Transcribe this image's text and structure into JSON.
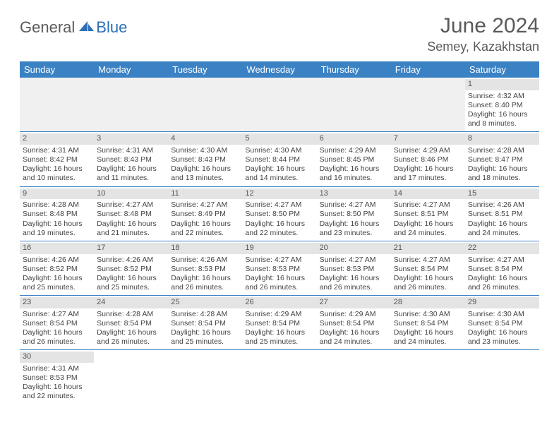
{
  "logo": {
    "text1": "General",
    "text2": "Blue"
  },
  "title": "June 2024",
  "location": "Semey, Kazakhstan",
  "daysOfWeek": [
    "Sunday",
    "Monday",
    "Tuesday",
    "Wednesday",
    "Thursday",
    "Friday",
    "Saturday"
  ],
  "colors": {
    "headerBg": "#3b82c4",
    "headerText": "#ffffff",
    "dayNumBg": "#e4e4e4",
    "borderColor": "#3b82c4",
    "logoBlue": "#2c6fb5",
    "textGray": "#5a5a5a"
  },
  "calendar": {
    "startOffset": 6,
    "days": [
      {
        "n": 1,
        "sunrise": "4:32 AM",
        "sunset": "8:40 PM",
        "daylight": "16 hours and 8 minutes."
      },
      {
        "n": 2,
        "sunrise": "4:31 AM",
        "sunset": "8:42 PM",
        "daylight": "16 hours and 10 minutes."
      },
      {
        "n": 3,
        "sunrise": "4:31 AM",
        "sunset": "8:43 PM",
        "daylight": "16 hours and 11 minutes."
      },
      {
        "n": 4,
        "sunrise": "4:30 AM",
        "sunset": "8:43 PM",
        "daylight": "16 hours and 13 minutes."
      },
      {
        "n": 5,
        "sunrise": "4:30 AM",
        "sunset": "8:44 PM",
        "daylight": "16 hours and 14 minutes."
      },
      {
        "n": 6,
        "sunrise": "4:29 AM",
        "sunset": "8:45 PM",
        "daylight": "16 hours and 16 minutes."
      },
      {
        "n": 7,
        "sunrise": "4:29 AM",
        "sunset": "8:46 PM",
        "daylight": "16 hours and 17 minutes."
      },
      {
        "n": 8,
        "sunrise": "4:28 AM",
        "sunset": "8:47 PM",
        "daylight": "16 hours and 18 minutes."
      },
      {
        "n": 9,
        "sunrise": "4:28 AM",
        "sunset": "8:48 PM",
        "daylight": "16 hours and 19 minutes."
      },
      {
        "n": 10,
        "sunrise": "4:27 AM",
        "sunset": "8:48 PM",
        "daylight": "16 hours and 21 minutes."
      },
      {
        "n": 11,
        "sunrise": "4:27 AM",
        "sunset": "8:49 PM",
        "daylight": "16 hours and 22 minutes."
      },
      {
        "n": 12,
        "sunrise": "4:27 AM",
        "sunset": "8:50 PM",
        "daylight": "16 hours and 22 minutes."
      },
      {
        "n": 13,
        "sunrise": "4:27 AM",
        "sunset": "8:50 PM",
        "daylight": "16 hours and 23 minutes."
      },
      {
        "n": 14,
        "sunrise": "4:27 AM",
        "sunset": "8:51 PM",
        "daylight": "16 hours and 24 minutes."
      },
      {
        "n": 15,
        "sunrise": "4:26 AM",
        "sunset": "8:51 PM",
        "daylight": "16 hours and 24 minutes."
      },
      {
        "n": 16,
        "sunrise": "4:26 AM",
        "sunset": "8:52 PM",
        "daylight": "16 hours and 25 minutes."
      },
      {
        "n": 17,
        "sunrise": "4:26 AM",
        "sunset": "8:52 PM",
        "daylight": "16 hours and 25 minutes."
      },
      {
        "n": 18,
        "sunrise": "4:26 AM",
        "sunset": "8:53 PM",
        "daylight": "16 hours and 26 minutes."
      },
      {
        "n": 19,
        "sunrise": "4:27 AM",
        "sunset": "8:53 PM",
        "daylight": "16 hours and 26 minutes."
      },
      {
        "n": 20,
        "sunrise": "4:27 AM",
        "sunset": "8:53 PM",
        "daylight": "16 hours and 26 minutes."
      },
      {
        "n": 21,
        "sunrise": "4:27 AM",
        "sunset": "8:54 PM",
        "daylight": "16 hours and 26 minutes."
      },
      {
        "n": 22,
        "sunrise": "4:27 AM",
        "sunset": "8:54 PM",
        "daylight": "16 hours and 26 minutes."
      },
      {
        "n": 23,
        "sunrise": "4:27 AM",
        "sunset": "8:54 PM",
        "daylight": "16 hours and 26 minutes."
      },
      {
        "n": 24,
        "sunrise": "4:28 AM",
        "sunset": "8:54 PM",
        "daylight": "16 hours and 26 minutes."
      },
      {
        "n": 25,
        "sunrise": "4:28 AM",
        "sunset": "8:54 PM",
        "daylight": "16 hours and 25 minutes."
      },
      {
        "n": 26,
        "sunrise": "4:29 AM",
        "sunset": "8:54 PM",
        "daylight": "16 hours and 25 minutes."
      },
      {
        "n": 27,
        "sunrise": "4:29 AM",
        "sunset": "8:54 PM",
        "daylight": "16 hours and 24 minutes."
      },
      {
        "n": 28,
        "sunrise": "4:30 AM",
        "sunset": "8:54 PM",
        "daylight": "16 hours and 24 minutes."
      },
      {
        "n": 29,
        "sunrise": "4:30 AM",
        "sunset": "8:54 PM",
        "daylight": "16 hours and 23 minutes."
      },
      {
        "n": 30,
        "sunrise": "4:31 AM",
        "sunset": "8:53 PM",
        "daylight": "16 hours and 22 minutes."
      }
    ]
  },
  "labels": {
    "sunrise": "Sunrise:",
    "sunset": "Sunset:",
    "daylight": "Daylight:"
  }
}
